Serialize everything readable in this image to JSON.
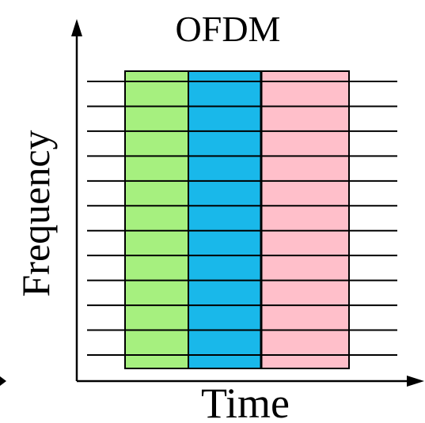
{
  "diagram": {
    "title": "OFDM",
    "x_axis_label": "Time",
    "y_axis_label": "Frequency",
    "subcarrier_count": 12,
    "symbols": [
      {
        "color": "#a6f07f"
      },
      {
        "color": "#19b8ea"
      },
      {
        "color": "#ffbfca"
      }
    ],
    "colors": {
      "line": "#000000",
      "background": "#ffffff"
    }
  }
}
